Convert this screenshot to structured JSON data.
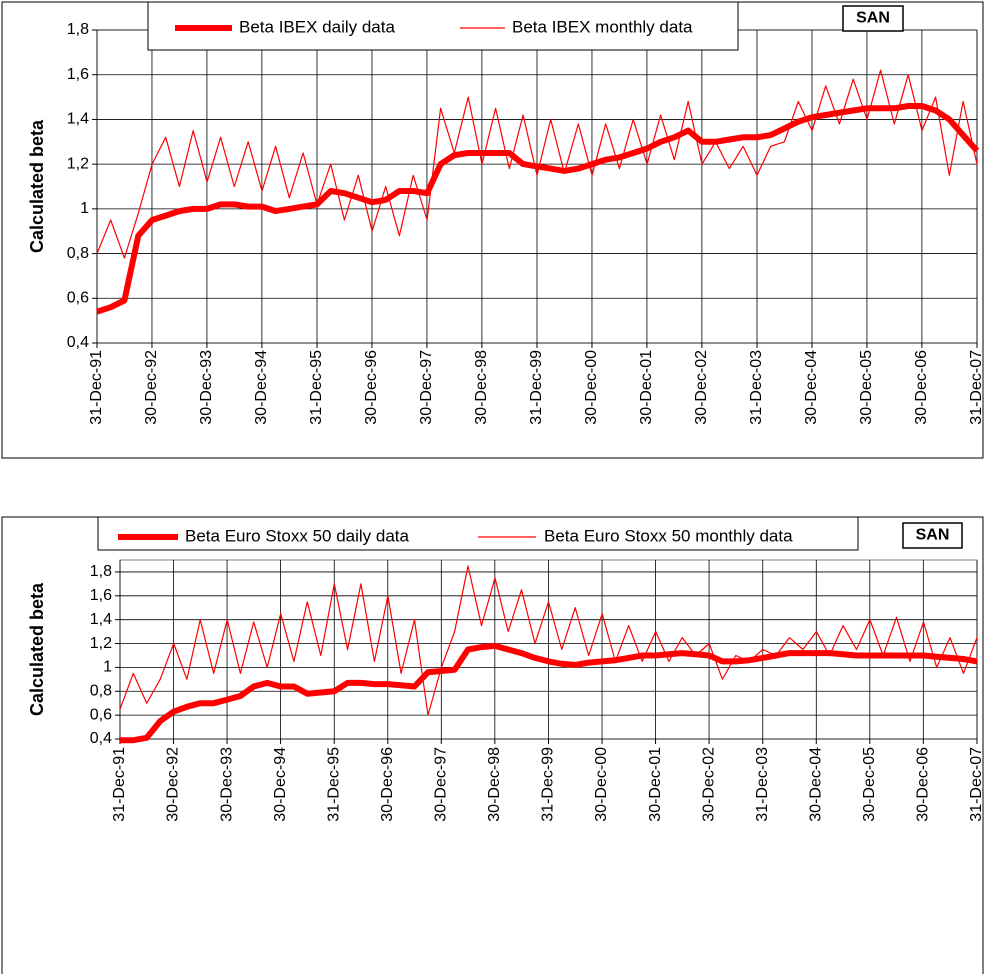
{
  "chart_data": [
    {
      "type": "line",
      "annotation": "SAN",
      "y_label": "Calculated beta",
      "grid": true,
      "legend": "top",
      "x": [
        "1991-12-31",
        "1992-03-31",
        "1992-06-30",
        "1992-09-30",
        "1992-12-31",
        "1993-03-31",
        "1993-06-30",
        "1993-09-30",
        "1993-12-31",
        "1994-03-31",
        "1994-06-30",
        "1994-09-30",
        "1994-12-31",
        "1995-03-31",
        "1995-06-30",
        "1995-09-30",
        "1995-12-31",
        "1996-03-31",
        "1996-06-30",
        "1996-09-30",
        "1996-12-31",
        "1997-03-31",
        "1997-06-30",
        "1997-09-30",
        "1997-12-31",
        "1998-03-31",
        "1998-06-30",
        "1998-09-30",
        "1998-12-31",
        "1999-03-31",
        "1999-06-30",
        "1999-09-30",
        "1999-12-31",
        "2000-03-31",
        "2000-06-30",
        "2000-09-30",
        "2000-12-31",
        "2001-03-31",
        "2001-06-30",
        "2001-09-30",
        "2001-12-31",
        "2002-03-31",
        "2002-06-30",
        "2002-09-30",
        "2002-12-31",
        "2003-03-31",
        "2003-06-30",
        "2003-09-30",
        "2003-12-31",
        "2004-03-31",
        "2004-06-30",
        "2004-09-30",
        "2004-12-31",
        "2005-03-31",
        "2005-06-30",
        "2005-09-30",
        "2005-12-31",
        "2006-03-31",
        "2006-06-30",
        "2006-09-30",
        "2006-12-31",
        "2007-03-31",
        "2007-06-30",
        "2007-09-30",
        "2007-12-31"
      ],
      "series": [
        {
          "name": "Beta IBEX daily data",
          "color": "#ff0000",
          "width": 6,
          "values": [
            0.54,
            0.56,
            0.59,
            0.88,
            0.95,
            0.97,
            0.99,
            1.0,
            1.0,
            1.02,
            1.02,
            1.01,
            1.01,
            0.99,
            1.0,
            1.01,
            1.02,
            1.08,
            1.07,
            1.05,
            1.03,
            1.04,
            1.08,
            1.08,
            1.07,
            1.2,
            1.24,
            1.25,
            1.25,
            1.25,
            1.25,
            1.2,
            1.19,
            1.18,
            1.17,
            1.18,
            1.2,
            1.22,
            1.23,
            1.25,
            1.27,
            1.3,
            1.32,
            1.35,
            1.3,
            1.3,
            1.31,
            1.32,
            1.32,
            1.33,
            1.36,
            1.39,
            1.41,
            1.42,
            1.43,
            1.44,
            1.45,
            1.45,
            1.45,
            1.46,
            1.46,
            1.44,
            1.4,
            1.33,
            1.26
          ]
        },
        {
          "name": "Beta IBEX monthly data",
          "color": "#ff0000",
          "width": 1.2,
          "values": [
            0.8,
            0.95,
            0.78,
            0.98,
            1.2,
            1.32,
            1.1,
            1.35,
            1.12,
            1.32,
            1.1,
            1.3,
            1.08,
            1.28,
            1.05,
            1.25,
            1.02,
            1.2,
            0.95,
            1.15,
            0.9,
            1.1,
            0.88,
            1.15,
            0.95,
            1.45,
            1.25,
            1.5,
            1.2,
            1.45,
            1.18,
            1.42,
            1.15,
            1.4,
            1.16,
            1.38,
            1.15,
            1.38,
            1.18,
            1.4,
            1.2,
            1.42,
            1.22,
            1.48,
            1.2,
            1.3,
            1.18,
            1.28,
            1.15,
            1.28,
            1.3,
            1.48,
            1.35,
            1.55,
            1.38,
            1.58,
            1.4,
            1.62,
            1.38,
            1.6,
            1.35,
            1.5,
            1.15,
            1.48,
            1.2
          ]
        }
      ],
      "xlim": [
        "1991-12-31",
        "2007-12-31"
      ],
      "xticks": [
        {
          "value": "1991-12-31",
          "label": "31-Dec-91"
        },
        {
          "value": "1992-12-30",
          "label": "30-Dec-92"
        },
        {
          "value": "1993-12-30",
          "label": "30-Dec-93"
        },
        {
          "value": "1994-12-30",
          "label": "30-Dec-94"
        },
        {
          "value": "1995-12-31",
          "label": "31-Dec-95"
        },
        {
          "value": "1996-12-30",
          "label": "30-Dec-96"
        },
        {
          "value": "1997-12-30",
          "label": "30-Dec-97"
        },
        {
          "value": "1998-12-30",
          "label": "30-Dec-98"
        },
        {
          "value": "1999-12-31",
          "label": "31-Dec-99"
        },
        {
          "value": "2000-12-30",
          "label": "30-Dec-00"
        },
        {
          "value": "2001-12-30",
          "label": "30-Dec-01"
        },
        {
          "value": "2002-12-30",
          "label": "30-Dec-02"
        },
        {
          "value": "2003-12-31",
          "label": "31-Dec-03"
        },
        {
          "value": "2004-12-30",
          "label": "30-Dec-04"
        },
        {
          "value": "2005-12-30",
          "label": "30-Dec-05"
        },
        {
          "value": "2006-12-30",
          "label": "30-Dec-06"
        },
        {
          "value": "2007-12-31",
          "label": "31-Dec-07"
        }
      ],
      "ylim": [
        0.4,
        1.8
      ],
      "yticks": [
        {
          "value": 0.4,
          "label": "0,4"
        },
        {
          "value": 0.6,
          "label": "0,6"
        },
        {
          "value": 0.8,
          "label": "0,8"
        },
        1,
        {
          "value": 1.2,
          "label": "1,2"
        },
        {
          "value": 1.4,
          "label": "1,4"
        },
        {
          "value": 1.6,
          "label": "1,6"
        },
        {
          "value": 1.8,
          "label": "1,8"
        }
      ]
    },
    {
      "type": "line",
      "annotation": "SAN",
      "y_label": "Calculated beta",
      "grid": true,
      "legend": "top",
      "x": [
        "1991-12-31",
        "1992-03-31",
        "1992-06-30",
        "1992-09-30",
        "1992-12-31",
        "1993-03-31",
        "1993-06-30",
        "1993-09-30",
        "1993-12-31",
        "1994-03-31",
        "1994-06-30",
        "1994-09-30",
        "1994-12-31",
        "1995-03-31",
        "1995-06-30",
        "1995-09-30",
        "1995-12-31",
        "1996-03-31",
        "1996-06-30",
        "1996-09-30",
        "1996-12-31",
        "1997-03-31",
        "1997-06-30",
        "1997-09-30",
        "1997-12-31",
        "1998-03-31",
        "1998-06-30",
        "1998-09-30",
        "1998-12-31",
        "1999-03-31",
        "1999-06-30",
        "1999-09-30",
        "1999-12-31",
        "2000-03-31",
        "2000-06-30",
        "2000-09-30",
        "2000-12-31",
        "2001-03-31",
        "2001-06-30",
        "2001-09-30",
        "2001-12-31",
        "2002-03-31",
        "2002-06-30",
        "2002-09-30",
        "2002-12-31",
        "2003-03-31",
        "2003-06-30",
        "2003-09-30",
        "2003-12-31",
        "2004-03-31",
        "2004-06-30",
        "2004-09-30",
        "2004-12-31",
        "2005-03-31",
        "2005-06-30",
        "2005-09-30",
        "2005-12-31",
        "2006-03-31",
        "2006-06-30",
        "2006-09-30",
        "2006-12-31",
        "2007-03-31",
        "2007-06-30",
        "2007-09-30",
        "2007-12-31"
      ],
      "series": [
        {
          "name": "Beta Euro Stoxx 50 daily data",
          "color": "#ff0000",
          "width": 6,
          "values": [
            0.39,
            0.39,
            0.41,
            0.55,
            0.63,
            0.67,
            0.7,
            0.7,
            0.73,
            0.76,
            0.84,
            0.87,
            0.84,
            0.84,
            0.78,
            0.79,
            0.8,
            0.87,
            0.87,
            0.86,
            0.86,
            0.85,
            0.84,
            0.96,
            0.97,
            0.98,
            1.15,
            1.17,
            1.18,
            1.15,
            1.12,
            1.08,
            1.05,
            1.03,
            1.02,
            1.04,
            1.05,
            1.06,
            1.08,
            1.1,
            1.1,
            1.11,
            1.12,
            1.11,
            1.1,
            1.05,
            1.05,
            1.06,
            1.08,
            1.1,
            1.12,
            1.12,
            1.12,
            1.12,
            1.11,
            1.1,
            1.1,
            1.1,
            1.1,
            1.1,
            1.1,
            1.09,
            1.08,
            1.07,
            1.05
          ]
        },
        {
          "name": "Beta Euro Stoxx 50 monthly data",
          "color": "#ff0000",
          "width": 1.2,
          "values": [
            0.65,
            0.95,
            0.7,
            0.9,
            1.2,
            0.9,
            1.4,
            0.95,
            1.4,
            0.95,
            1.38,
            1.0,
            1.45,
            1.05,
            1.55,
            1.1,
            1.7,
            1.15,
            1.7,
            1.05,
            1.6,
            0.95,
            1.4,
            0.6,
            1.0,
            1.3,
            1.85,
            1.35,
            1.75,
            1.3,
            1.65,
            1.2,
            1.55,
            1.15,
            1.5,
            1.1,
            1.45,
            1.05,
            1.35,
            1.05,
            1.3,
            1.05,
            1.25,
            1.1,
            1.2,
            0.9,
            1.1,
            1.05,
            1.15,
            1.1,
            1.25,
            1.15,
            1.3,
            1.1,
            1.35,
            1.15,
            1.4,
            1.1,
            1.42,
            1.05,
            1.38,
            1.0,
            1.25,
            0.95,
            1.25
          ]
        }
      ],
      "xlim": [
        "1991-12-31",
        "2007-12-31"
      ],
      "xticks": [
        {
          "value": "1991-12-31",
          "label": "31-Dec-91"
        },
        {
          "value": "1992-12-30",
          "label": "30-Dec-92"
        },
        {
          "value": "1993-12-30",
          "label": "30-Dec-93"
        },
        {
          "value": "1994-12-30",
          "label": "30-Dec-94"
        },
        {
          "value": "1995-12-31",
          "label": "31-Dec-95"
        },
        {
          "value": "1996-12-30",
          "label": "30-Dec-96"
        },
        {
          "value": "1997-12-30",
          "label": "30-Dec-97"
        },
        {
          "value": "1998-12-30",
          "label": "30-Dec-98"
        },
        {
          "value": "1999-12-31",
          "label": "31-Dec-99"
        },
        {
          "value": "2000-12-30",
          "label": "30-Dec-00"
        },
        {
          "value": "2001-12-30",
          "label": "30-Dec-01"
        },
        {
          "value": "2002-12-30",
          "label": "30-Dec-02"
        },
        {
          "value": "2003-12-31",
          "label": "31-Dec-03"
        },
        {
          "value": "2004-12-30",
          "label": "30-Dec-04"
        },
        {
          "value": "2005-12-30",
          "label": "30-Dec-05"
        },
        {
          "value": "2006-12-30",
          "label": "30-Dec-06"
        },
        {
          "value": "2007-12-31",
          "label": "31-Dec-07"
        }
      ],
      "ylim": [
        0.4,
        1.9
      ],
      "yticks": [
        {
          "value": 0.4,
          "label": "0,4"
        },
        {
          "value": 0.6,
          "label": "0,6"
        },
        {
          "value": 0.8,
          "label": "0,8"
        },
        1,
        {
          "value": 1.2,
          "label": "1,2"
        },
        {
          "value": 1.4,
          "label": "1,4"
        },
        {
          "value": 1.6,
          "label": "1,6"
        },
        {
          "value": 1.8,
          "label": "1,8"
        }
      ]
    }
  ]
}
